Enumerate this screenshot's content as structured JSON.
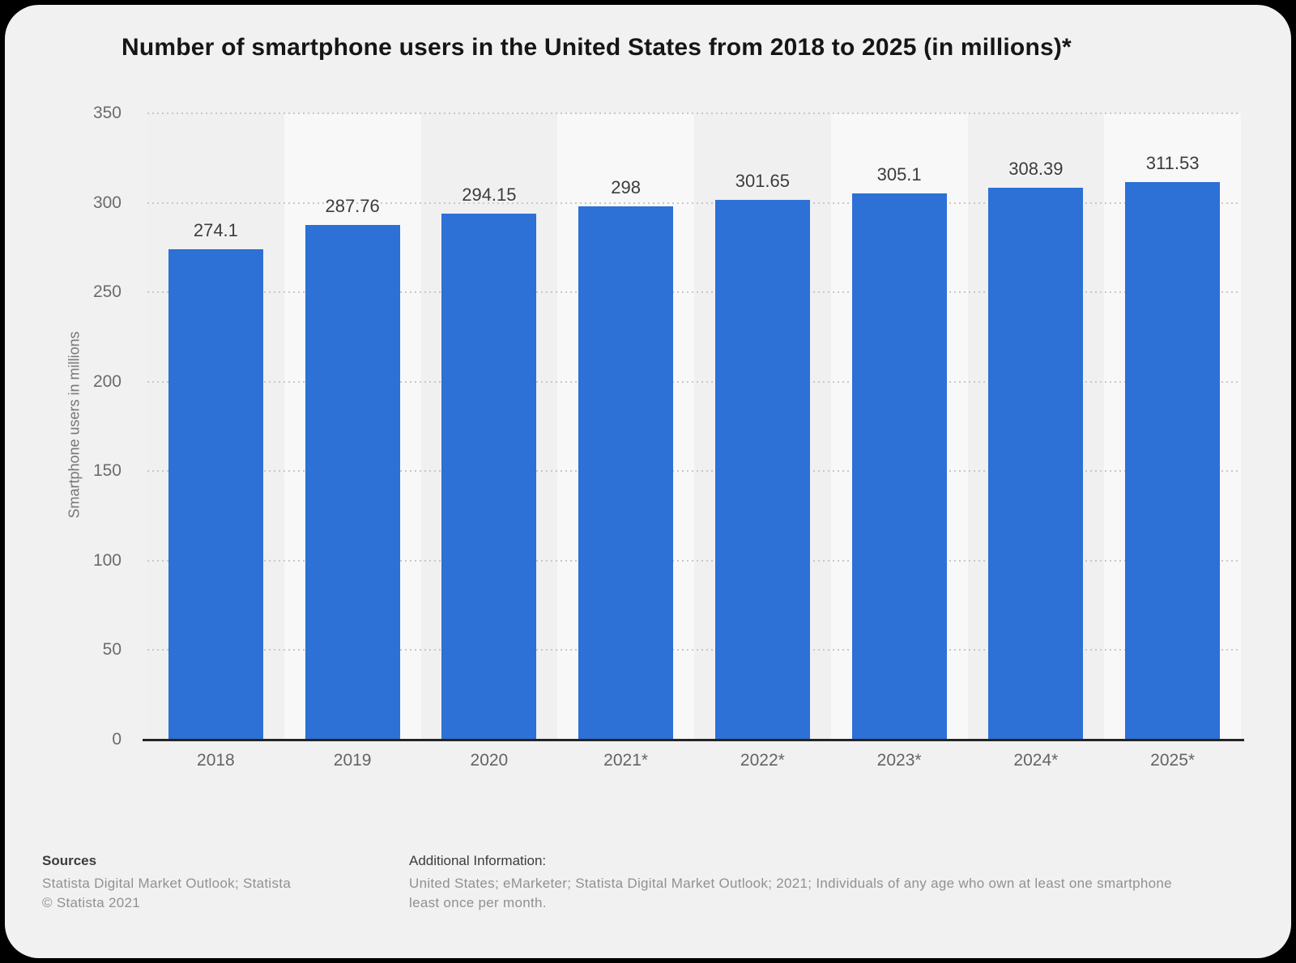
{
  "title": "Number of smartphone users in the United States from 2018 to 2025 (in millions)*",
  "chart_data": {
    "type": "bar",
    "title": "Number of smartphone users in the United States from 2018 to 2025 (in millions)*",
    "categories": [
      "2018",
      "2019",
      "2020",
      "2021*",
      "2022*",
      "2023*",
      "2024*",
      "2025*"
    ],
    "values": [
      274.1,
      287.76,
      294.15,
      298,
      301.65,
      305.1,
      308.39,
      311.53
    ],
    "value_labels": [
      "274.1",
      "287.76",
      "294.15",
      "298",
      "301.65",
      "305.1",
      "308.39",
      "311.53"
    ],
    "xlabel": "",
    "ylabel": "Smartphone users in millions",
    "ylim": [
      0,
      350
    ],
    "ytick_interval": 50,
    "ytick_labels": [
      "350",
      "300",
      "250",
      "200",
      "150",
      "100",
      "50",
      "0"
    ],
    "grid": "horizontal-dotted",
    "legend": "none",
    "style": {
      "bar_color": "#2d70d6",
      "band_light": "#f8f8f9",
      "band_dark": "#f0f0f1",
      "grid_color": "#c7c7c7",
      "axis_color": "#262626",
      "card_background": "#f1f1f1",
      "page_background": "#000000"
    }
  },
  "footer": {
    "sources_label": "Sources",
    "sources_text": "Statista Digital Market Outlook; Statista",
    "copyright": "© Statista 2021",
    "additional_label": "Additional Information:",
    "additional_line1": "United States; eMarketer; Statista Digital Market Outlook; 2021; Individuals of any age who own at least one smartphone",
    "additional_line2": "least once per month."
  }
}
